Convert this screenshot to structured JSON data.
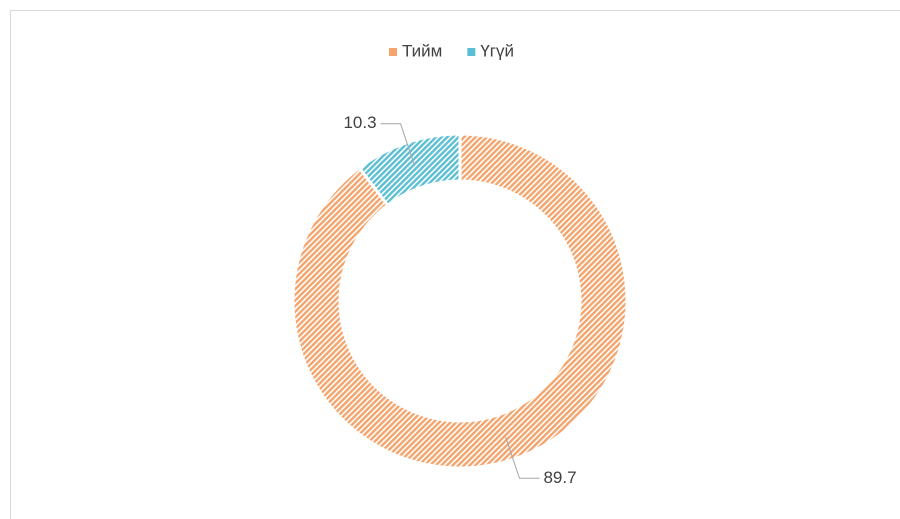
{
  "chart_data": {
    "type": "donut",
    "categories": [
      "Тийм",
      "Үгүй"
    ],
    "values": [
      89.7,
      10.3
    ],
    "colors": [
      "#f4a46c",
      "#5bbfd3"
    ],
    "legend": "top"
  }
}
